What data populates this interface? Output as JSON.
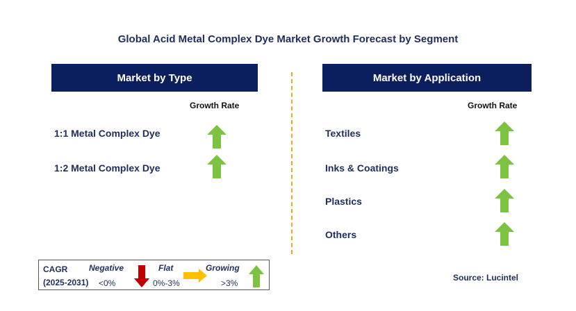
{
  "title": "Global Acid Metal Complex Dye Market Growth Forecast by Segment",
  "left_panel": {
    "header": "Market by Type",
    "growth_label": "Growth Rate",
    "items": [
      {
        "label": "1:1 Metal Complex Dye",
        "trend": "growing"
      },
      {
        "label": "1:2 Metal Complex Dye",
        "trend": "growing"
      }
    ]
  },
  "right_panel": {
    "header": "Market by Application",
    "growth_label": "Growth Rate",
    "items": [
      {
        "label": "Textiles",
        "trend": "growing"
      },
      {
        "label": "Inks & Coatings",
        "trend": "growing"
      },
      {
        "label": "Plastics",
        "trend": "growing"
      },
      {
        "label": "Others",
        "trend": "growing"
      }
    ]
  },
  "legend": {
    "cagr": "CAGR",
    "period": "(2025-2031)",
    "negative_label": "Negative",
    "negative_value": "<0%",
    "flat_label": "Flat",
    "flat_value": "0%-3%",
    "growing_label": "Growing",
    "growing_value": ">3%"
  },
  "source": "Source: Lucintel",
  "colors": {
    "header_bg": "#0b1f5e",
    "growing": "#7dc242",
    "negative": "#c00000",
    "flat": "#ffc000",
    "divider": "#f5a623"
  }
}
